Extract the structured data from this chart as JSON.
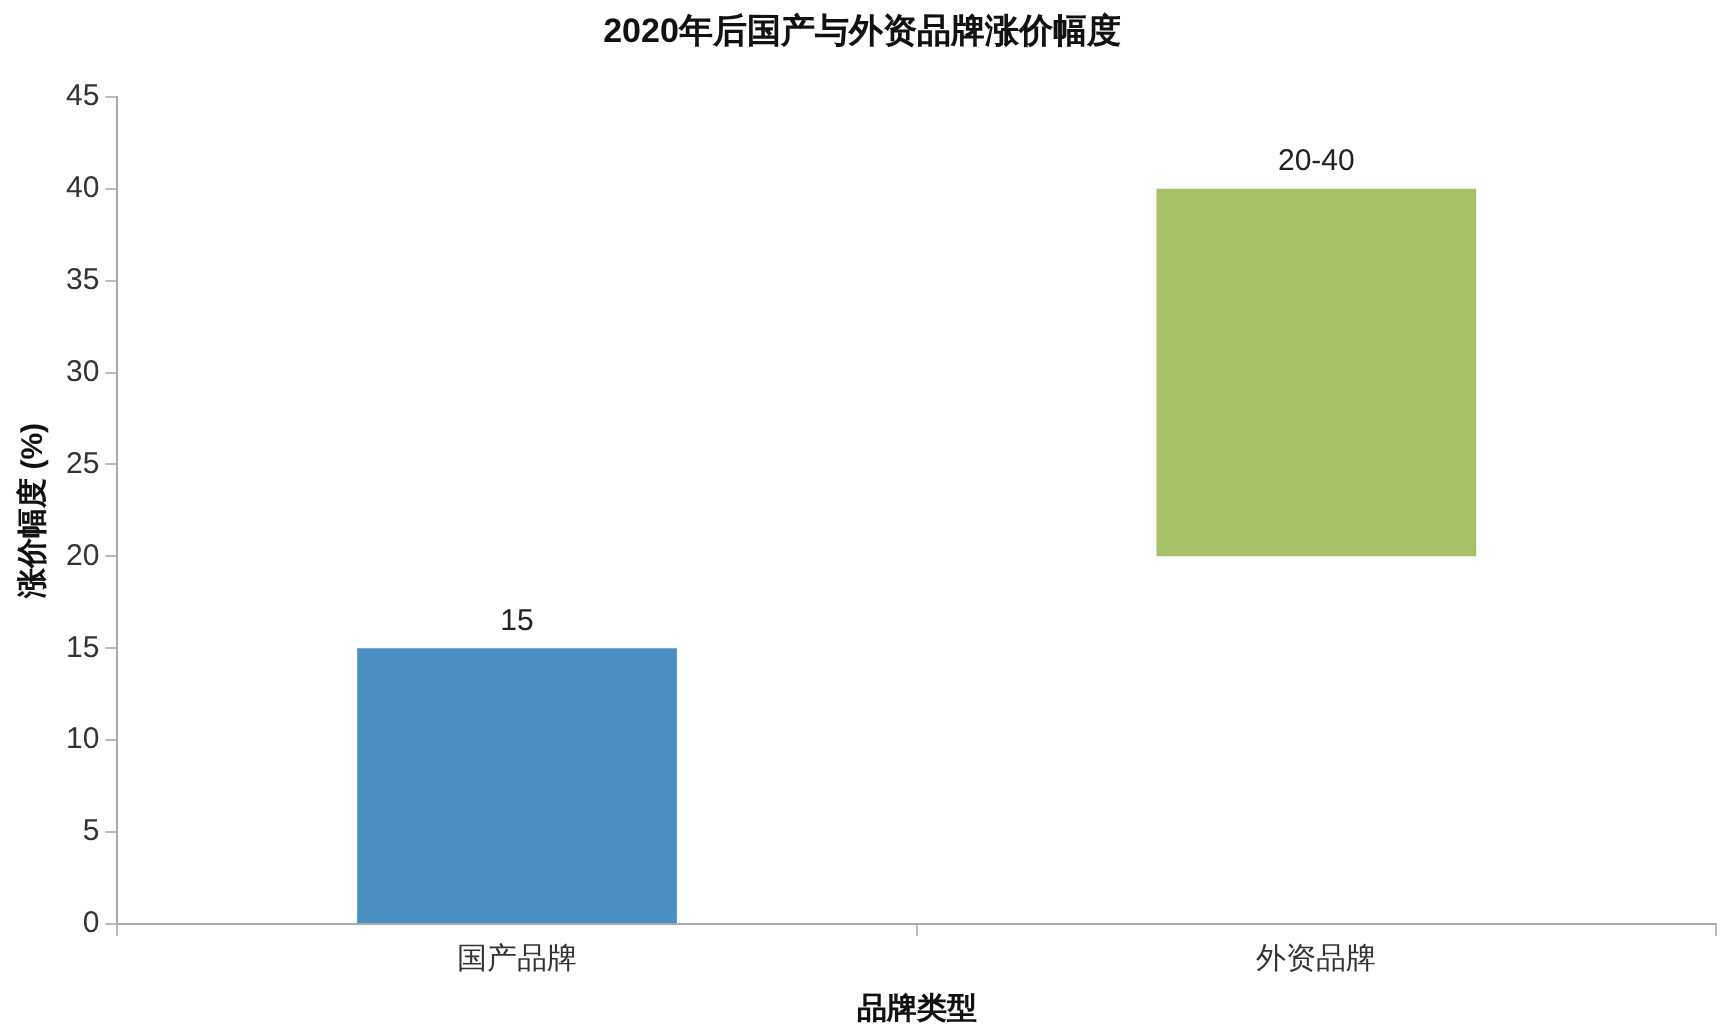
{
  "chart_data": {
    "type": "bar",
    "title": "2020年后国产与外资品牌涨价幅度",
    "xlabel": "品牌类型",
    "ylabel": "涨价幅度 (%)",
    "categories": [
      "国产品牌",
      "外资品牌"
    ],
    "values": [
      15,
      20
    ],
    "base": [
      0,
      20
    ],
    "colors": [
      "#4a8fc4",
      "#a6c168"
    ],
    "value_labels": [
      "15",
      "20-40"
    ],
    "ylim": [
      0,
      45
    ],
    "yticks": [
      0,
      5,
      10,
      15,
      20,
      25,
      30,
      35,
      40,
      45
    ],
    "grid": false,
    "legend": false
  }
}
